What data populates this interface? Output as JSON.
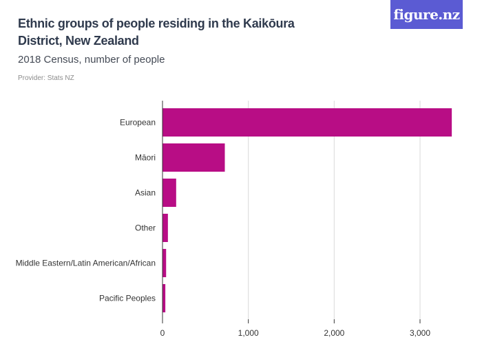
{
  "header": {
    "title": "Ethnic groups of people residing in the Kaikōura District, New Zealand",
    "subtitle": "2018 Census, number of people",
    "provider": "Provider: Stats NZ",
    "logo": "figure.nz"
  },
  "colors": {
    "bar": "#b80d85",
    "grid": "#d9d9d9",
    "axis": "#333333",
    "logo_bg": "#5b5bd3"
  },
  "chart_data": {
    "type": "bar",
    "orientation": "horizontal",
    "categories": [
      "European",
      "Māori",
      "Asian",
      "Other",
      "Middle Eastern/Latin American/African",
      "Pacific Peoples"
    ],
    "values": [
      3370,
      726,
      159,
      63,
      42,
      33
    ],
    "xlim": [
      0,
      3500
    ],
    "xticks": [
      0,
      1000,
      2000,
      3000
    ],
    "xtick_labels": [
      "0",
      "1,000",
      "2,000",
      "3,000"
    ],
    "grid": "vertical"
  }
}
